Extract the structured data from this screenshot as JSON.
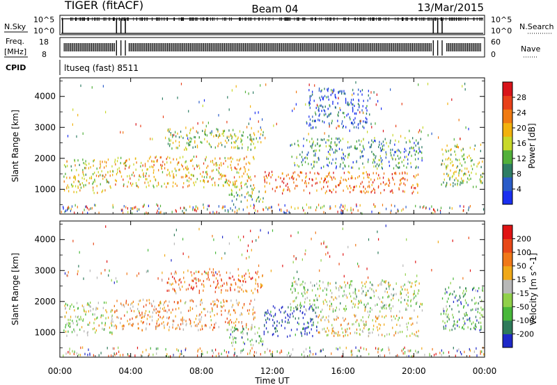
{
  "header": {
    "title": "TIGER (fitACF)",
    "beam": "Beam 04",
    "date": "13/Mar/2015"
  },
  "strips": {
    "nsky": {
      "label": "N.Sky",
      "ticks": [
        "10^5",
        "10^0"
      ],
      "right_label": "N.Search",
      "right_ticks": [
        "10^5",
        "10^0"
      ]
    },
    "freq": {
      "label_top": "Freq.",
      "label_bottom": "[MHz]",
      "ticks": [
        "18",
        "8"
      ],
      "right_label": "Nave",
      "right_ticks": [
        "60",
        "0"
      ]
    },
    "cpid": {
      "label": "CPID",
      "value": "ltuseq (fast) 8511"
    }
  },
  "x_axis": {
    "label": "Time UT",
    "range_hours": [
      0,
      24
    ],
    "ticks": [
      "00:00",
      "04:00",
      "08:00",
      "12:00",
      "16:00",
      "20:00",
      "00:00"
    ],
    "tick_hours": [
      0,
      4,
      8,
      12,
      16,
      20,
      24
    ]
  },
  "chart_data": [
    {
      "type": "heatmap",
      "name": "power",
      "ylabel": "Slant Range [km]",
      "ylim": [
        200,
        4600
      ],
      "yticks": [
        1000,
        2000,
        3000,
        4000
      ],
      "colorbar": {
        "label": "Power [dB]",
        "range": [
          0,
          32
        ],
        "ticks": [
          "4",
          "8",
          "12",
          "16",
          "20",
          "24",
          "28"
        ],
        "tick_values": [
          4,
          8,
          12,
          16,
          20,
          24,
          28
        ],
        "colors": [
          "#1a2ff0",
          "#2a5cc8",
          "#2e7d64",
          "#52b03a",
          "#c8d82a",
          "#f2b20e",
          "#f07a12",
          "#e8401a",
          "#d8141a"
        ]
      },
      "echo_regions": [
        {
          "t0": 0.2,
          "t1": 3.0,
          "r0": 900,
          "r1": 2000,
          "level": 0.55
        },
        {
          "t0": 3.0,
          "t1": 11.0,
          "r0": 1100,
          "r1": 2100,
          "level": 0.62
        },
        {
          "t0": 6.0,
          "t1": 11.5,
          "r0": 2300,
          "r1": 3000,
          "level": 0.45
        },
        {
          "t0": 9.5,
          "t1": 11.5,
          "r0": 600,
          "r1": 1200,
          "level": 0.4
        },
        {
          "t0": 11.5,
          "t1": 20.3,
          "r0": 900,
          "r1": 1600,
          "level": 0.78
        },
        {
          "t0": 13.0,
          "t1": 20.5,
          "r0": 1700,
          "r1": 2700,
          "level": 0.3
        },
        {
          "t0": 14.0,
          "t1": 17.5,
          "r0": 3000,
          "r1": 4300,
          "level": 0.15
        },
        {
          "t0": 21.5,
          "t1": 23.9,
          "r0": 1100,
          "r1": 2500,
          "level": 0.45
        }
      ]
    },
    {
      "type": "heatmap",
      "name": "velocity",
      "ylabel": "Slant Range [km]",
      "ylim": [
        200,
        4600
      ],
      "yticks": [
        1000,
        2000,
        3000,
        4000
      ],
      "colorbar": {
        "label": "Velocity [m s^-1]",
        "ticks": [
          "200",
          "100",
          "50",
          "15",
          "-15",
          "-50",
          "-100",
          "-200"
        ],
        "colors": [
          "#1e28c8",
          "#2e7a5a",
          "#48b83a",
          "#90d04a",
          "#b8b8b8",
          "#f0a818",
          "#f07818",
          "#e84818",
          "#e01414"
        ]
      },
      "echo_regions": [
        {
          "t0": 0.2,
          "t1": 3.0,
          "r0": 900,
          "r1": 2000,
          "level": 0.45
        },
        {
          "t0": 3.0,
          "t1": 11.0,
          "r0": 1100,
          "r1": 2100,
          "level": 0.65
        },
        {
          "t0": 6.0,
          "t1": 11.5,
          "r0": 2300,
          "r1": 3000,
          "level": 0.75
        },
        {
          "t0": 9.5,
          "t1": 11.5,
          "r0": 600,
          "r1": 1200,
          "level": 0.3
        },
        {
          "t0": 11.5,
          "t1": 14.5,
          "r0": 900,
          "r1": 1900,
          "level": 0.05
        },
        {
          "t0": 14.5,
          "t1": 20.3,
          "r0": 900,
          "r1": 1600,
          "level": 0.55
        },
        {
          "t0": 13.0,
          "t1": 20.5,
          "r0": 1700,
          "r1": 2700,
          "level": 0.4
        },
        {
          "t0": 21.5,
          "t1": 23.9,
          "r0": 1100,
          "r1": 2500,
          "level": 0.25
        }
      ]
    }
  ]
}
